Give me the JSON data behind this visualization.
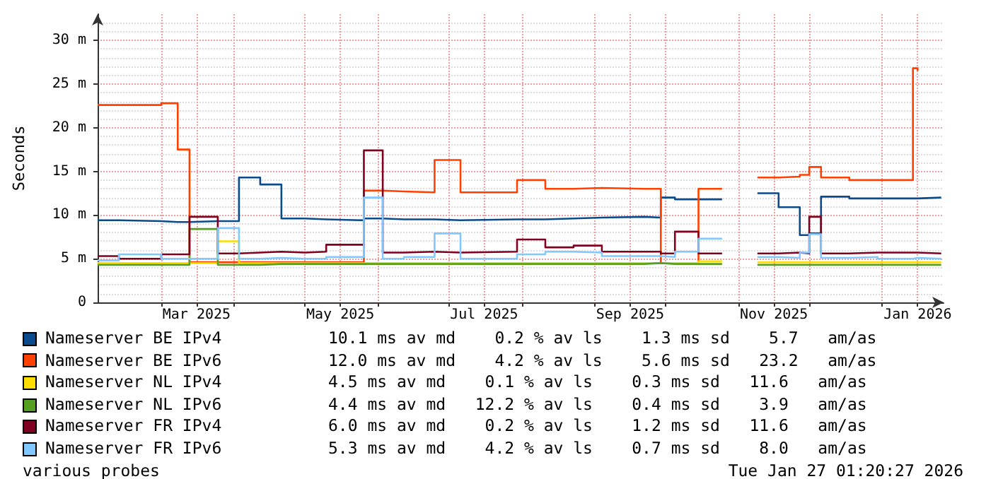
{
  "chart_data": {
    "type": "step",
    "ylabel": "Seconds",
    "legend": "bottom",
    "grid": true,
    "x": [
      "2025-02-02",
      "2025-02-11",
      "2025-03-01",
      "2025-03-08",
      "2025-03-13",
      "2025-03-25",
      "2025-04-03",
      "2025-04-12",
      "2025-04-21",
      "2025-05-01",
      "2025-05-10",
      "2025-05-26",
      "2025-06-03",
      "2025-06-12",
      "2025-06-25",
      "2025-07-06",
      "2025-07-30",
      "2025-08-11",
      "2025-08-23",
      "2025-09-04",
      "2025-09-22",
      "2025-09-29",
      "2025-10-05",
      "2025-10-15",
      "2025-10-25",
      "2025-11-09",
      "2025-11-18",
      "2025-11-27",
      "2025-12-01",
      "2025-12-06",
      "2025-12-18",
      "2025-12-30",
      "2026-01-14",
      "2026-01-16",
      "2026-01-26"
    ],
    "xlim": [
      "2025-02-02",
      "2026-01-27"
    ],
    "xticks": [
      {
        "value": "2025-03-01",
        "label": null
      },
      {
        "value": "2025-03-16",
        "label": "Mar 2025"
      },
      {
        "value": "2025-04-01",
        "label": null
      },
      {
        "value": "2025-05-01",
        "label": null
      },
      {
        "value": "2025-05-16",
        "label": "May 2025"
      },
      {
        "value": "2025-06-01",
        "label": null
      },
      {
        "value": "2025-07-01",
        "label": null
      },
      {
        "value": "2025-07-16",
        "label": "Jul 2025"
      },
      {
        "value": "2025-08-01",
        "label": null
      },
      {
        "value": "2025-09-01",
        "label": null
      },
      {
        "value": "2025-09-16",
        "label": "Sep 2025"
      },
      {
        "value": "2025-10-01",
        "label": null
      },
      {
        "value": "2025-11-01",
        "label": null
      },
      {
        "value": "2025-11-16",
        "label": "Nov 2025"
      },
      {
        "value": "2025-12-01",
        "label": null
      },
      {
        "value": "2026-01-01",
        "label": null
      },
      {
        "value": "2026-01-16",
        "label": "Jan 2026"
      }
    ],
    "ylim": [
      0,
      33
    ],
    "yticks": [
      0,
      {
        "value": 5,
        "label": "5 m"
      },
      {
        "value": 10,
        "label": "10 m"
      },
      {
        "value": 15,
        "label": "15 m"
      },
      {
        "value": 20,
        "label": "20 m"
      },
      {
        "value": 25,
        "label": "25 m"
      },
      {
        "value": 30,
        "label": "30 m"
      }
    ],
    "series": [
      {
        "name": "Nameserver BE IPv4",
        "color": "#0b4a8b",
        "values": [
          9.4,
          9.3,
          9.2,
          9.2,
          9.3,
          9.3,
          14.3,
          13.5,
          9.6,
          9.5,
          9.4,
          9.6,
          9.5,
          9.5,
          9.4,
          9.5,
          9.5,
          9.6,
          9.7,
          9.8,
          9.7,
          12.0,
          11.8,
          11.8,
          null,
          12.5,
          10.9,
          7.7,
          7.9,
          12.1,
          11.9,
          11.9,
          11.9,
          12.0,
          11.9
        ]
      },
      {
        "name": "Nameserver BE IPv6",
        "color": "#ff4000",
        "x": [
          "2025-02-02",
          "2025-02-11",
          "2025-03-01",
          "2025-03-08",
          "2025-03-13",
          "2025-03-25",
          "2025-04-03",
          "2025-04-12",
          "2025-04-21",
          "2025-05-01",
          "2025-05-10",
          "2025-05-26",
          "2025-06-03",
          "2025-06-12",
          "2025-06-25",
          "2025-07-06",
          "2025-07-30",
          "2025-08-11",
          "2025-08-23",
          "2025-09-04",
          "2025-09-22",
          "2025-09-29",
          "2025-10-05",
          "2025-10-15",
          "2025-10-25",
          "2025-11-09",
          "2025-11-18",
          "2025-11-27",
          "2025-12-01",
          "2025-12-06",
          "2025-12-18",
          "2025-12-30",
          "2026-01-14",
          "2026-01-16"
        ],
        "values": [
          22.6,
          22.6,
          22.8,
          17.5,
          4.6,
          4.6,
          4.6,
          4.6,
          4.6,
          4.6,
          4.6,
          12.8,
          12.7,
          12.6,
          16.3,
          12.6,
          14.0,
          13.0,
          13.1,
          13.0,
          13.0,
          4.5,
          4.5,
          13.0,
          null,
          14.3,
          14.4,
          14.6,
          15.5,
          14.3,
          14.0,
          14.0,
          26.8,
          26.5
        ]
      },
      {
        "name": "Nameserver NL IPv4",
        "color": "#ffdd00",
        "values": [
          4.5,
          4.5,
          4.5,
          4.5,
          4.5,
          7.0,
          4.5,
          4.5,
          4.5,
          4.5,
          4.5,
          4.5,
          4.5,
          4.5,
          4.5,
          4.5,
          4.5,
          4.5,
          4.5,
          4.5,
          4.5,
          4.5,
          4.5,
          4.7,
          null,
          4.6,
          4.6,
          4.6,
          4.6,
          4.6,
          4.6,
          4.6,
          4.6,
          4.6,
          4.6
        ]
      },
      {
        "name": "Nameserver NL IPv6",
        "color": "#55a020",
        "values": [
          4.3,
          4.3,
          4.3,
          4.3,
          8.4,
          4.3,
          4.3,
          4.4,
          4.4,
          4.4,
          4.4,
          4.4,
          4.4,
          4.4,
          4.4,
          4.4,
          4.4,
          4.4,
          4.4,
          4.4,
          4.5,
          4.4,
          4.4,
          4.4,
          null,
          4.3,
          4.3,
          4.3,
          4.3,
          4.3,
          4.3,
          4.3,
          4.3,
          4.3,
          4.3
        ]
      },
      {
        "name": "Nameserver FR IPv4",
        "color": "#800020",
        "values": [
          5.3,
          5.0,
          5.5,
          5.5,
          9.8,
          5.6,
          5.7,
          5.8,
          5.7,
          5.8,
          6.6,
          17.4,
          5.7,
          5.8,
          5.7,
          5.8,
          7.2,
          6.3,
          6.5,
          5.8,
          5.8,
          5.6,
          8.1,
          5.6,
          null,
          5.6,
          5.7,
          5.6,
          9.8,
          5.6,
          5.7,
          5.7,
          5.7,
          5.6,
          5.6
        ]
      },
      {
        "name": "Nameserver FR IPv6",
        "color": "#80c8ff",
        "values": [
          4.8,
          5.5,
          5.0,
          5.0,
          5.0,
          8.5,
          5.0,
          5.1,
          5.0,
          5.0,
          5.2,
          12.0,
          5.0,
          5.2,
          7.9,
          5.0,
          5.5,
          5.8,
          5.7,
          5.3,
          5.3,
          5.2,
          5.8,
          7.3,
          null,
          5.2,
          5.1,
          5.7,
          7.8,
          5.1,
          5.2,
          5.0,
          5.1,
          5.0,
          5.0
        ]
      }
    ],
    "annotations": [
      "10.1 ms av md    0.2 % av ls    1.3 ms sd    5.7   am/as",
      "12.0 ms av md    4.2 % av ls    5.6 ms sd   23.2   am/as",
      "4.5 ms av md    0.1 % av ls    0.3 ms sd   11.6   am/as",
      "4.4 ms av md   12.2 % av ls    0.4 ms sd    3.9   am/as",
      "6.0 ms av md    0.2 % av ls    1.2 ms sd   11.6   am/as",
      "5.3 ms av md    4.2 % av ls    0.7 ms sd    8.0   am/as",
      "various probes",
      "Tue Jan 27 01:20:27 2026"
    ]
  }
}
